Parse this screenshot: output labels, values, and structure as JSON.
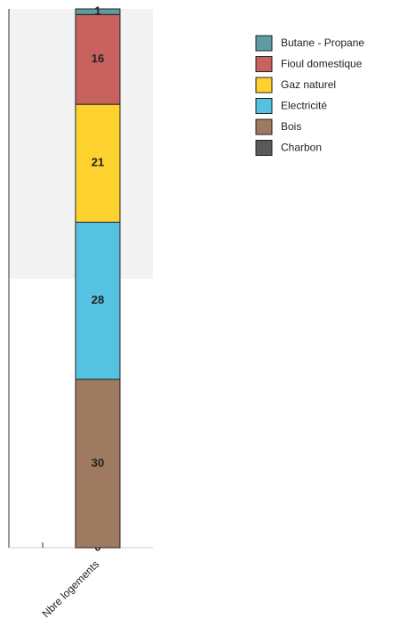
{
  "chart_data": {
    "type": "stacked_bar",
    "categories": [
      "Nbre logements"
    ],
    "ylim": [
      0,
      96
    ],
    "series": [
      {
        "name": "Charbon",
        "color": "#5a5a5a",
        "values": [
          0
        ]
      },
      {
        "name": "Bois",
        "color": "#9e7b60",
        "values": [
          30
        ]
      },
      {
        "name": "Electricité",
        "color": "#56c2e2",
        "values": [
          28
        ]
      },
      {
        "name": "Gaz naturel",
        "color": "#fdd12e",
        "values": [
          21
        ]
      },
      {
        "name": "Fioul domestique",
        "color": "#c7625f",
        "values": [
          16
        ]
      },
      {
        "name": "Butane - Propane",
        "color": "#5e9ca2",
        "values": [
          1
        ]
      }
    ]
  }
}
